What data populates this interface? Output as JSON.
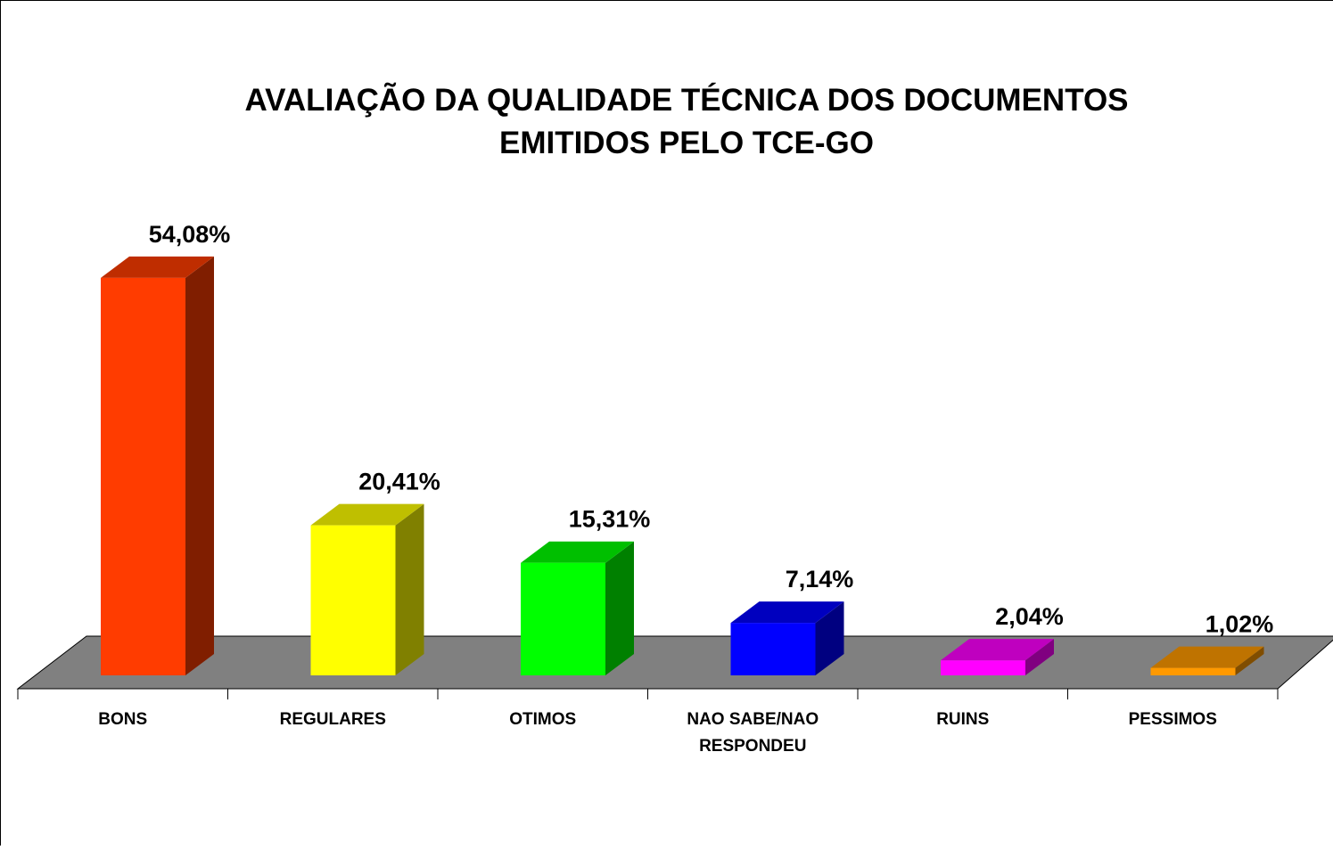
{
  "chart_data": {
    "type": "bar3d",
    "title": [
      "AVALIAÇÃO DA QUALIDADE TÉCNICA DOS DOCUMENTOS",
      "EMITIDOS PELO TCE-GO"
    ],
    "categories": [
      "BONS",
      "REGULARES",
      "OTIMOS",
      "NAO SABE/NAO RESPONDEU",
      "RUINS",
      "PESSIMOS"
    ],
    "values": [
      54.08,
      20.41,
      15.31,
      7.14,
      2.04,
      1.02
    ],
    "value_labels": [
      "54,08%",
      "20,41%",
      "15,31%",
      "7,14%",
      "2,04%",
      "1,02%"
    ],
    "colors": [
      "#ff3c00",
      "#ffff00",
      "#00ff00",
      "#0000ff",
      "#ff00ff",
      "#ff9900"
    ],
    "floor_color": "#808080"
  }
}
